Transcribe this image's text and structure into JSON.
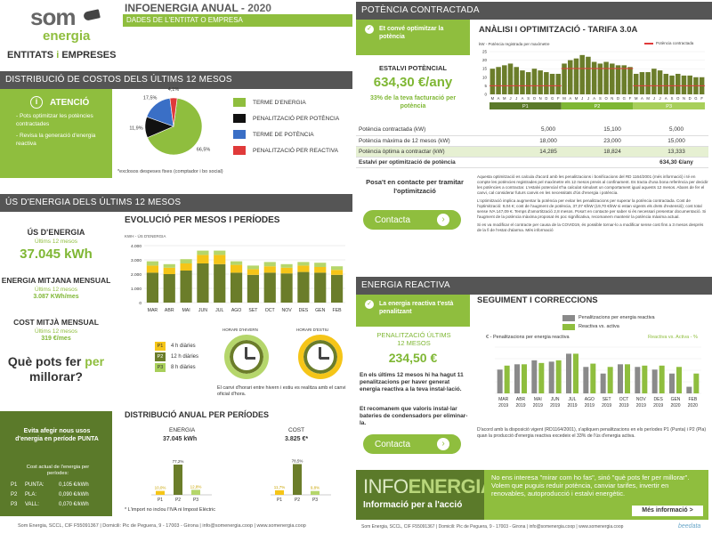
{
  "brand": {
    "logo_top": "som",
    "logo_bottom": "energia",
    "tagline_a": "ENTITATS ",
    "tagline_i": "i",
    "tagline_b": " EMPRESES"
  },
  "header": {
    "title": "INFOENERGIA ANUAL",
    "year": " - 2020",
    "subtitle": "DADES DE L'ENTITAT O EMPRESA"
  },
  "costs": {
    "section_title": "DISTRIBUCIÓ DE COSTOS DELS ÚLTIMS 12 MESOS",
    "attention_title": "ATENCIÓ",
    "attention_items": [
      "- Pots optimitzar les potències contractades",
      "- Revisa la generació d'energia reactiva"
    ],
    "legend": [
      "TERME D'ENERGIA",
      "PENALITZACIÓ PER POTÈNCIA",
      "TERME DE POTÈNCIA",
      "PENALITZACIÓ PER REACTIVA"
    ],
    "footnote": "*exclosos despeses fixes (comptador i bo social)"
  },
  "usage": {
    "section_title": "ÚS D'ENERGIA DELS ÚLTIMS 12 MESOS",
    "kpi1_label": "ÚS D'ENERGIA",
    "kpi1_sub": "Últims 12 mesos",
    "kpi1_value": "37.045 kWh",
    "kpi2_label": "ENERGIA MITJANA MENSUAL",
    "kpi2_sub": "Últims 12 mesos",
    "kpi2_value": "3.087 KWh/mes",
    "kpi3_label": "COST MITJÀ MENSUAL",
    "kpi3_sub": "Últims 12 mesos",
    "kpi3_value": "319 €/mes",
    "question_a": "Què pots fer ",
    "question_b": "per",
    "question_c": "millorar?",
    "tip_title": "Evita afegir nous usos d'energia en període PUNTA",
    "tip_cost_title": "Cost actual de l'energia per períodes:",
    "tip_rows": [
      {
        "p": "P1",
        "name": "PUNTA:",
        "val": "0,105 €/kWh"
      },
      {
        "p": "P2",
        "name": "PLA:",
        "val": "0,090 €/kWh"
      },
      {
        "p": "P3",
        "name": "VALL:",
        "val": "0,070 €/kWh"
      }
    ],
    "evolution_title": "EVOLUCIÓ PER MESOS I PERÍODES",
    "evolution_unit": "KWH - ÚS D'ENERGIA",
    "periods": [
      {
        "p": "P1",
        "text": "4 h diàries"
      },
      {
        "p": "P2",
        "text": "12 h diàries"
      },
      {
        "p": "P3",
        "text": "8 h diàries"
      }
    ],
    "clock_winter": "HORARI D'HIVERN",
    "clock_summer": "HORARI D'ESTIU",
    "clock_note": "El canvi d'horari entre hivern i estiu es realitza amb el canvi oficial d'hora.",
    "annual_title": "DISTRIBUCIÓ ANUAL PER PERÍODES",
    "annual_energy_label": "ENERGIA",
    "annual_energy_value": "37.045 kWh",
    "annual_cost_label": "COST",
    "annual_cost_value": "3.825 €*",
    "annual_note": "* L'import no inclou l'IVA ni Impost Elèctric"
  },
  "power": {
    "section_title": "POTÈNCIA CONTRACTADA",
    "callout": "Et convé optimitzar la potència",
    "saving_label": "ESTALVI POTÈNCIAL",
    "saving_value": "634,30 €/any",
    "saving_pct": "33% de la teva facturació per potència",
    "analysis_title": "ANÀLISI I OPTIMITZACIÓ - TARIFA 3.0A",
    "legend_bar": "kW - Potència registrada per maxímetre",
    "legend_line": "Potència contractada",
    "table_rows": [
      {
        "label": "Potència contractada (kW)",
        "p1": "5,000",
        "p2": "15,100",
        "p3": "5,000"
      },
      {
        "label": "Potència màxima de 12 mesos (kW)",
        "p1": "18,000",
        "p2": "23,000",
        "p3": "15,000"
      },
      {
        "label": "Potència òptima a contractar (kW)",
        "p1": "14,285",
        "p2": "18,824",
        "p3": "13,333"
      }
    ],
    "total_label": "Estalvi per optimització de potència",
    "total_value": "634,30 €/any",
    "contact_question": "Posa't en contacte per tramitar l'optimització",
    "contact_button": "Contacta",
    "explanation_1": "Aquesta optimització es calcula d'acord amb les penalitzacions i bonificacions del RD 1164/2001 (més informació) i té en compte les potències registrades pel maxímetre els 12 mesos previs al confinament. Es tracta d'una bona referència per decidir les potències a contractar. L'estalvi potencial s'ha calculat simulant un comportament igual aquests 12 mesos. Abans de fer el canvi, cal considerar futurs canvis en les necessitats d'ús d'energia i potència.",
    "explanation_2": "L'optimització implica augmentar la potència per evitar les penalitzacions per superar la potència contractada. Cost de l'optimització: 9,04 €; cost de l'augment de potència, 37,07 €/kW (19,70 €/kW si estan vigents els drets d'extensió); cost total sense IVA 147,09 €. Temps d'amortització 2,8 mesos. Posa't en contacte per saber si és necessari presentar documentació. Si l'augment de la potència màxima proposat és poc significativa, recomanem mantenir la potència màxima actual.",
    "explanation_3": "Si es va modificar el contracte per causa de la COVID19, és possible tornar-lo a modificar sense cost fins a 3 mesos després de la fi de l'estat d'alarma. Més informació"
  },
  "reactive": {
    "section_title": "ENERGIA REACTIVA",
    "callout": "La energia reactiva t'està penalitzant",
    "penalty_label": "PENALITZACIÓ ÚLTIMS 12 MESOS",
    "penalty_value": "234,50 €",
    "text_1": "En els últims 12 mesos hi ha hagut 11 penalitzacions per haver generat energia reactiva a la teva instal·lació.",
    "text_2": "Et recomanem que valoris instal·lar bateries de condensadors per eliminar-la.",
    "contact_button": "Contacta",
    "tracking_title": "SEGUIMENT I CORRECCIONS",
    "legend_1": "Penalitzacions per energia reactiva",
    "legend_2": "Reactiva vs. activa",
    "axis_left": "€ - Penalitzacions per energia reactiva",
    "axis_right": "Reactiva vs. Activa - %",
    "note": "D'acord amb la disposició vigent (RD1164/2001), s'apliquen penalitzacions en els períodes P1 (Punta) i P2 (Pla) quan la producció d'energia reactiva excedeix el 33% de l'ús d'energia activa."
  },
  "banner": {
    "title_a": "INFO",
    "title_b": "ENERGIA",
    "subtitle": "Informació per a l'acció",
    "text": "No ens interesa \"mirar com ho fas\", sinó \"què pots fer per millorar\". Volem que puguis reduir potència, canviar tarifes, invertir en renovables, autoproducció i estalvi energètic.",
    "button": "Més informació >"
  },
  "footer": {
    "left": "Som Energia, SCCL, CIF F55091367  |  Domicili: Pic de Peguera, 9 - 17003 - Girona  |  info@somenergia.coop  |  www.somenergia.coop",
    "right": "Som Energia, SCCL, CIF F55091367  |  Domicili: Pic de Peguera, 9 - 17003 - Girona  |  info@somenergia.coop  |  www.somenergia.coop",
    "brand": "beedata"
  },
  "colors": {
    "green": "#8fbe3e",
    "dark_green": "#5b7a2a",
    "olive": "#6b7d2a",
    "yellow": "#f5c518",
    "gray": "#555555",
    "blue": "#3a6fc6",
    "red": "#e03a3a",
    "black": "#111111"
  },
  "chart_data": [
    {
      "type": "pie",
      "title": "DISTRIBUCIÓ DE COSTOS DELS ÚLTIMS 12 MESOS",
      "categories": [
        "TERME D'ENERGIA",
        "PENALITZACIÓ PER POTÈNCIA",
        "TERME DE POTÈNCIA",
        "PENALITZACIÓ PER REACTIVA"
      ],
      "values": [
        66.5,
        11.9,
        17.5,
        4.1
      ],
      "labels": [
        "66,5",
        "11,9",
        "17,5",
        "4,1"
      ]
    },
    {
      "type": "bar",
      "title": "EVOLUCIÓ PER MESOS I PERÍODES",
      "ylabel": "KWH - ÚS D'ENERGIA",
      "categories": [
        "MAR",
        "ABR",
        "MAI",
        "JUN",
        "JUL",
        "AGO",
        "SET",
        "OCT",
        "NOV",
        "DES",
        "GEN",
        "FEB"
      ],
      "yticks": [
        "4.000",
        "3.000",
        "2.000",
        "1.000",
        "0"
      ],
      "ylim": [
        0,
        4000
      ],
      "series": [
        {
          "name": "P2",
          "values": [
            2100,
            2000,
            2250,
            2750,
            2700,
            2100,
            1950,
            2100,
            2050,
            2150,
            2100,
            1950
          ]
        },
        {
          "name": "P1",
          "values": [
            500,
            450,
            500,
            600,
            650,
            550,
            400,
            450,
            400,
            450,
            400,
            350
          ]
        },
        {
          "name": "P3",
          "values": [
            300,
            250,
            300,
            300,
            300,
            250,
            250,
            300,
            250,
            250,
            300,
            250
          ]
        }
      ]
    },
    {
      "type": "bar",
      "title": "ANÀLISI I OPTIMITZACIÓ - TARIFA 3.0A",
      "categories": [
        "M",
        "A",
        "M",
        "J",
        "J",
        "A",
        "S",
        "O",
        "N",
        "D",
        "G",
        "F",
        "M",
        "A",
        "M",
        "J",
        "J",
        "A",
        "S",
        "O",
        "N",
        "D",
        "G",
        "F",
        "M",
        "A",
        "M",
        "J",
        "J",
        "A",
        "S",
        "O",
        "N",
        "D",
        "G",
        "F"
      ],
      "yticks": [
        "25",
        "20",
        "15",
        "10",
        "5",
        "0"
      ],
      "ylim": [
        0,
        25
      ],
      "period_labels": [
        "P1",
        "P2",
        "P3"
      ],
      "series": [
        {
          "name": "kW - Potència registrada per maxímetre",
          "values": [
            15,
            16,
            17,
            18,
            16,
            14,
            13,
            15,
            14,
            13,
            12,
            12,
            18,
            20,
            21,
            23,
            22,
            19,
            18,
            19,
            18,
            17,
            17,
            16,
            12,
            13,
            13,
            15,
            14,
            12,
            11,
            12,
            11,
            11,
            10,
            10
          ]
        },
        {
          "name": "Potència contractada",
          "values": [
            5,
            5,
            5,
            5,
            5,
            5,
            5,
            5,
            5,
            5,
            5,
            5,
            15.1,
            15.1,
            15.1,
            15.1,
            15.1,
            15.1,
            15.1,
            15.1,
            15.1,
            15.1,
            15.1,
            15.1,
            5,
            5,
            5,
            5,
            5,
            5,
            5,
            5,
            5,
            5,
            5,
            5
          ]
        }
      ]
    },
    {
      "type": "bar",
      "title": "DISTRIBUCIÓ ANUAL PER PERÍODES - ENERGIA",
      "categories": [
        "P1",
        "P2",
        "P3"
      ],
      "values": [
        10.0,
        77.2,
        12.8
      ],
      "labels": [
        "10,0%",
        "77,2%",
        "12,8%"
      ]
    },
    {
      "type": "bar",
      "title": "DISTRIBUCIÓ ANUAL PER PERÍODES - COST",
      "categories": [
        "P1",
        "P2",
        "P3"
      ],
      "values": [
        11.7,
        78.5,
        9.8
      ],
      "labels": [
        "11,7%",
        "78,5%",
        "9,8%"
      ]
    },
    {
      "type": "bar",
      "title": "SEGUIMENT I CORRECCIONS",
      "categories": [
        "MAR 2019",
        "ABR 2019",
        "MAI 2019",
        "JUN 2019",
        "JUL 2019",
        "AGO 2019",
        "SET 2019",
        "OCT 2019",
        "NOV 2019",
        "DES 2019",
        "GEN 2020",
        "FEB 2020"
      ],
      "series": [
        {
          "name": "Penalitzacions per energia reactiva",
          "values": [
            18,
            22,
            25,
            24,
            30,
            20,
            15,
            22,
            20,
            18,
            15,
            5
          ]
        },
        {
          "name": "Reactiva vs. activa",
          "values": [
            42,
            44,
            46,
            50,
            60,
            45,
            40,
            44,
            42,
            42,
            40,
            30
          ]
        }
      ]
    }
  ]
}
